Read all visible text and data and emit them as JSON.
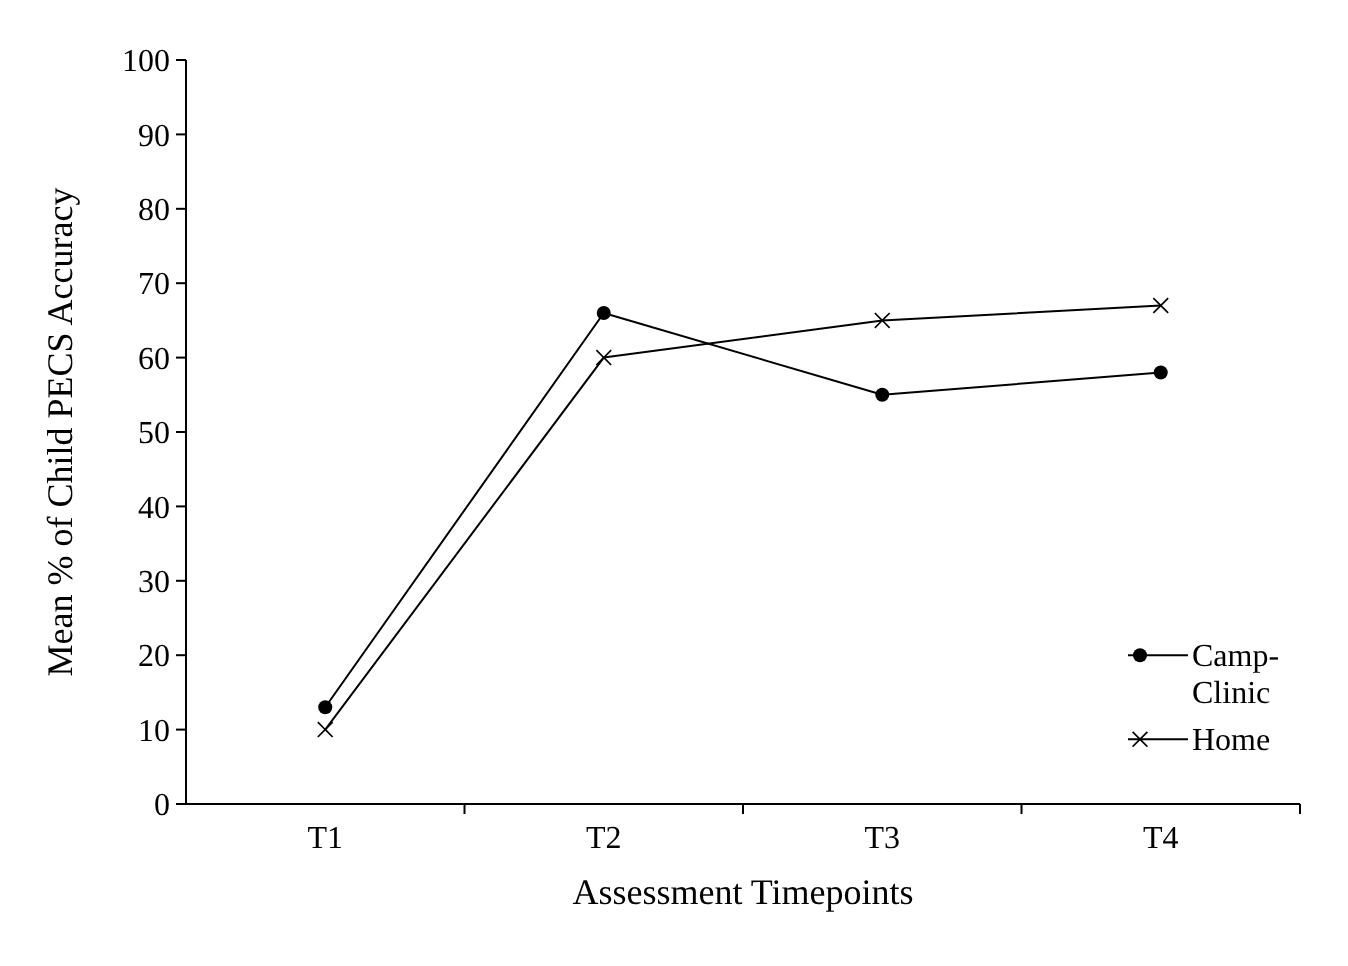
{
  "chart_data": {
    "type": "line",
    "xlabel": "Assessment Timepoints",
    "ylabel": "Mean % of Child PECS Accuracy",
    "categories": [
      "T1",
      "T2",
      "T3",
      "T4"
    ],
    "series": [
      {
        "name": "Camp-\nClinic",
        "color": "#000000",
        "values": [
          13,
          66,
          55,
          58
        ],
        "marker": "circle"
      },
      {
        "name": "Home",
        "color": "#000000",
        "values": [
          10,
          60,
          65,
          67
        ],
        "marker": "cross"
      }
    ],
    "ylim": [
      0,
      100
    ],
    "yticks": [
      0,
      10,
      20,
      30,
      40,
      50,
      60,
      70,
      80,
      90,
      100
    ],
    "grid": false,
    "legend": "right",
    "line_style": "solid"
  }
}
